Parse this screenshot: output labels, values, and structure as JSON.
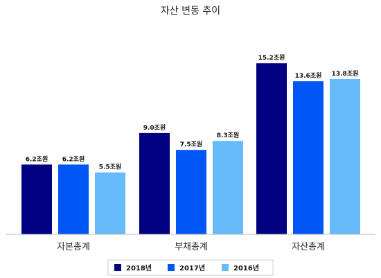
{
  "chart_data": {
    "type": "bar",
    "title": "자산 변동 추이",
    "xlabel": "",
    "ylabel": "",
    "categories": [
      "자본총계",
      "부채총계",
      "자산총계"
    ],
    "series": [
      {
        "name": "2018년",
        "color": "#000080",
        "values": [
          6.2,
          9.0,
          15.2
        ],
        "labels": [
          "6.2조원",
          "9.0조원",
          "15.2조원"
        ]
      },
      {
        "name": "2017년",
        "color": "#0055F5",
        "values": [
          6.2,
          7.5,
          13.6
        ],
        "labels": [
          "6.2조원",
          "7.5조원",
          "13.6조원"
        ]
      },
      {
        "name": "2016년",
        "color": "#66BBFA",
        "values": [
          5.5,
          8.3,
          13.8
        ],
        "labels": [
          "5.5조원",
          "8.3조원",
          "13.8조원"
        ]
      }
    ],
    "ylim": [
      0,
      17
    ],
    "grid": false,
    "legend": "bottom"
  }
}
